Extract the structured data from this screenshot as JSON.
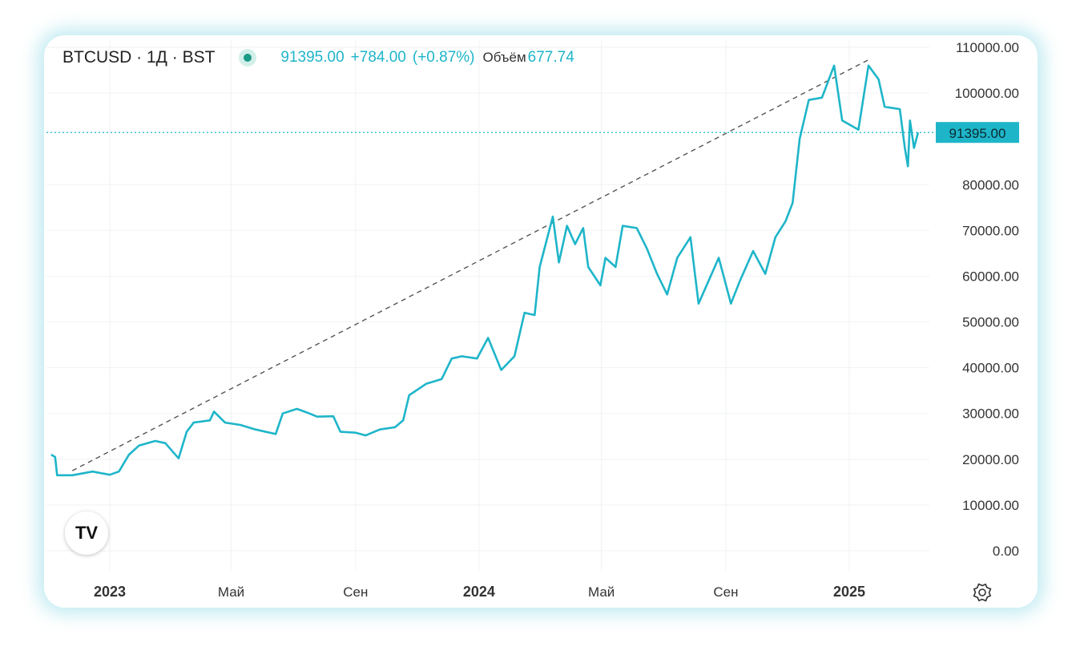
{
  "header": {
    "symbol": "BTCUSD · 1Д · BST",
    "price": "91395.00",
    "change": "+784.00",
    "change_pct": "(+0.87%)",
    "volume_label": "Объём",
    "volume": "677.74"
  },
  "logo_text": "TV",
  "icons": {
    "settings": "gear-icon",
    "status": "market-status-dot"
  },
  "colors": {
    "line": "#1eb5c9",
    "trend": "#555555",
    "grid": "#f0f2f5",
    "badge": "#1eb5c9",
    "status": "#1a9b85"
  },
  "chart_data": {
    "type": "line",
    "title": "BTCUSD · 1Д · BST",
    "ylim": [
      0,
      110000
    ],
    "y_ticks": [
      "0.00",
      "10000.00",
      "20000.00",
      "30000.00",
      "40000.00",
      "50000.00",
      "60000.00",
      "70000.00",
      "80000.00",
      "100000.00",
      "110000.00"
    ],
    "y_tick_values": [
      0,
      10000,
      20000,
      30000,
      40000,
      50000,
      60000,
      70000,
      80000,
      100000,
      110000
    ],
    "x_ticks": [
      {
        "label": "2023",
        "date": "2023-01-01"
      },
      {
        "label": "Май",
        "date": "2023-05-01"
      },
      {
        "label": "Сен",
        "date": "2023-09-01"
      },
      {
        "label": "2024",
        "date": "2024-01-01"
      },
      {
        "label": "Май",
        "date": "2024-05-01"
      },
      {
        "label": "Сен",
        "date": "2024-09-01"
      },
      {
        "label": "2025",
        "date": "2025-01-01"
      }
    ],
    "current_price": 91395,
    "current_price_label": "91395.00",
    "trendline": [
      [
        "2022-11-25",
        17500
      ],
      [
        "2025-01-22",
        107500
      ]
    ],
    "series": [
      {
        "name": "BTCUSD",
        "points": [
          [
            "2022-11-04",
            21000
          ],
          [
            "2022-11-08",
            20500
          ],
          [
            "2022-11-10",
            16500
          ],
          [
            "2022-11-25",
            16500
          ],
          [
            "2022-12-15",
            17300
          ],
          [
            "2023-01-01",
            16600
          ],
          [
            "2023-01-10",
            17300
          ],
          [
            "2023-01-20",
            21000
          ],
          [
            "2023-01-30",
            23000
          ],
          [
            "2023-02-15",
            24000
          ],
          [
            "2023-02-25",
            23500
          ],
          [
            "2023-03-10",
            20200
          ],
          [
            "2023-03-18",
            26000
          ],
          [
            "2023-03-25",
            28000
          ],
          [
            "2023-04-10",
            28500
          ],
          [
            "2023-04-14",
            30400
          ],
          [
            "2023-04-25",
            28000
          ],
          [
            "2023-05-10",
            27500
          ],
          [
            "2023-05-25",
            26500
          ],
          [
            "2023-06-14",
            25500
          ],
          [
            "2023-06-21",
            30000
          ],
          [
            "2023-07-05",
            31000
          ],
          [
            "2023-07-15",
            30200
          ],
          [
            "2023-07-25",
            29300
          ],
          [
            "2023-08-10",
            29400
          ],
          [
            "2023-08-17",
            26000
          ],
          [
            "2023-09-01",
            25800
          ],
          [
            "2023-09-11",
            25200
          ],
          [
            "2023-09-25",
            26500
          ],
          [
            "2023-10-10",
            27000
          ],
          [
            "2023-10-18",
            28500
          ],
          [
            "2023-10-24",
            34000
          ],
          [
            "2023-11-10",
            36500
          ],
          [
            "2023-11-25",
            37500
          ],
          [
            "2023-12-05",
            42000
          ],
          [
            "2023-12-15",
            42500
          ],
          [
            "2023-12-30",
            42000
          ],
          [
            "2024-01-10",
            46500
          ],
          [
            "2024-01-23",
            39500
          ],
          [
            "2024-02-05",
            42500
          ],
          [
            "2024-02-15",
            52000
          ],
          [
            "2024-02-25",
            51500
          ],
          [
            "2024-03-01",
            62000
          ],
          [
            "2024-03-14",
            73000
          ],
          [
            "2024-03-20",
            63000
          ],
          [
            "2024-03-28",
            71000
          ],
          [
            "2024-04-05",
            67000
          ],
          [
            "2024-04-13",
            70500
          ],
          [
            "2024-04-18",
            62000
          ],
          [
            "2024-04-30",
            58000
          ],
          [
            "2024-05-05",
            64000
          ],
          [
            "2024-05-15",
            62000
          ],
          [
            "2024-05-22",
            71000
          ],
          [
            "2024-06-05",
            70500
          ],
          [
            "2024-06-15",
            66000
          ],
          [
            "2024-06-25",
            60500
          ],
          [
            "2024-07-05",
            56000
          ],
          [
            "2024-07-15",
            64000
          ],
          [
            "2024-07-28",
            68500
          ],
          [
            "2024-08-05",
            54000
          ],
          [
            "2024-08-15",
            59000
          ],
          [
            "2024-08-25",
            64000
          ],
          [
            "2024-09-06",
            54000
          ],
          [
            "2024-09-15",
            59000
          ],
          [
            "2024-09-28",
            65500
          ],
          [
            "2024-10-10",
            60500
          ],
          [
            "2024-10-20",
            68500
          ],
          [
            "2024-10-30",
            72000
          ],
          [
            "2024-11-06",
            76000
          ],
          [
            "2024-11-13",
            90000
          ],
          [
            "2024-11-22",
            98500
          ],
          [
            "2024-12-05",
            99000
          ],
          [
            "2024-12-17",
            106000
          ],
          [
            "2024-12-25",
            94000
          ],
          [
            "2025-01-10",
            92000
          ],
          [
            "2025-01-20",
            106000
          ],
          [
            "2025-01-30",
            103000
          ],
          [
            "2025-02-05",
            97000
          ],
          [
            "2025-02-20",
            96500
          ],
          [
            "2025-02-25",
            88000
          ],
          [
            "2025-02-28",
            84000
          ],
          [
            "2025-03-02",
            94000
          ],
          [
            "2025-03-06",
            88000
          ],
          [
            "2025-03-10",
            91395
          ]
        ]
      }
    ]
  }
}
